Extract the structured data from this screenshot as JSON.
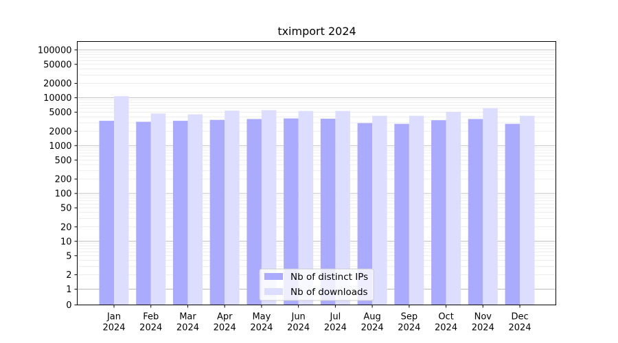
{
  "chart_data": {
    "type": "bar",
    "title": "tximport 2024",
    "xlabel": "",
    "ylabel": "",
    "y_scale": "symlog",
    "ylim": [
      0,
      150000
    ],
    "y_ticks": [
      0,
      1,
      2,
      5,
      10,
      20,
      50,
      100,
      200,
      500,
      1000,
      2000,
      5000,
      10000,
      20000,
      50000,
      100000
    ],
    "grid": true,
    "legend_position": "lower-center",
    "categories": [
      "Jan\n2024",
      "Feb\n2024",
      "Mar\n2024",
      "Apr\n2024",
      "May\n2024",
      "Jun\n2024",
      "Jul\n2024",
      "Aug\n2024",
      "Sep\n2024",
      "Oct\n2024",
      "Nov\n2024",
      "Dec\n2024"
    ],
    "series": [
      {
        "name": "Nb of distinct IPs",
        "color": "#aaaaff",
        "values": [
          3300,
          3150,
          3300,
          3450,
          3600,
          3700,
          3650,
          2950,
          2850,
          3400,
          3600,
          2850
        ]
      },
      {
        "name": "Nb of downloads",
        "color": "#ddddff",
        "values": [
          10800,
          4700,
          4500,
          5400,
          5500,
          5300,
          5300,
          4200,
          4200,
          5100,
          6100,
          4200
        ]
      }
    ]
  }
}
